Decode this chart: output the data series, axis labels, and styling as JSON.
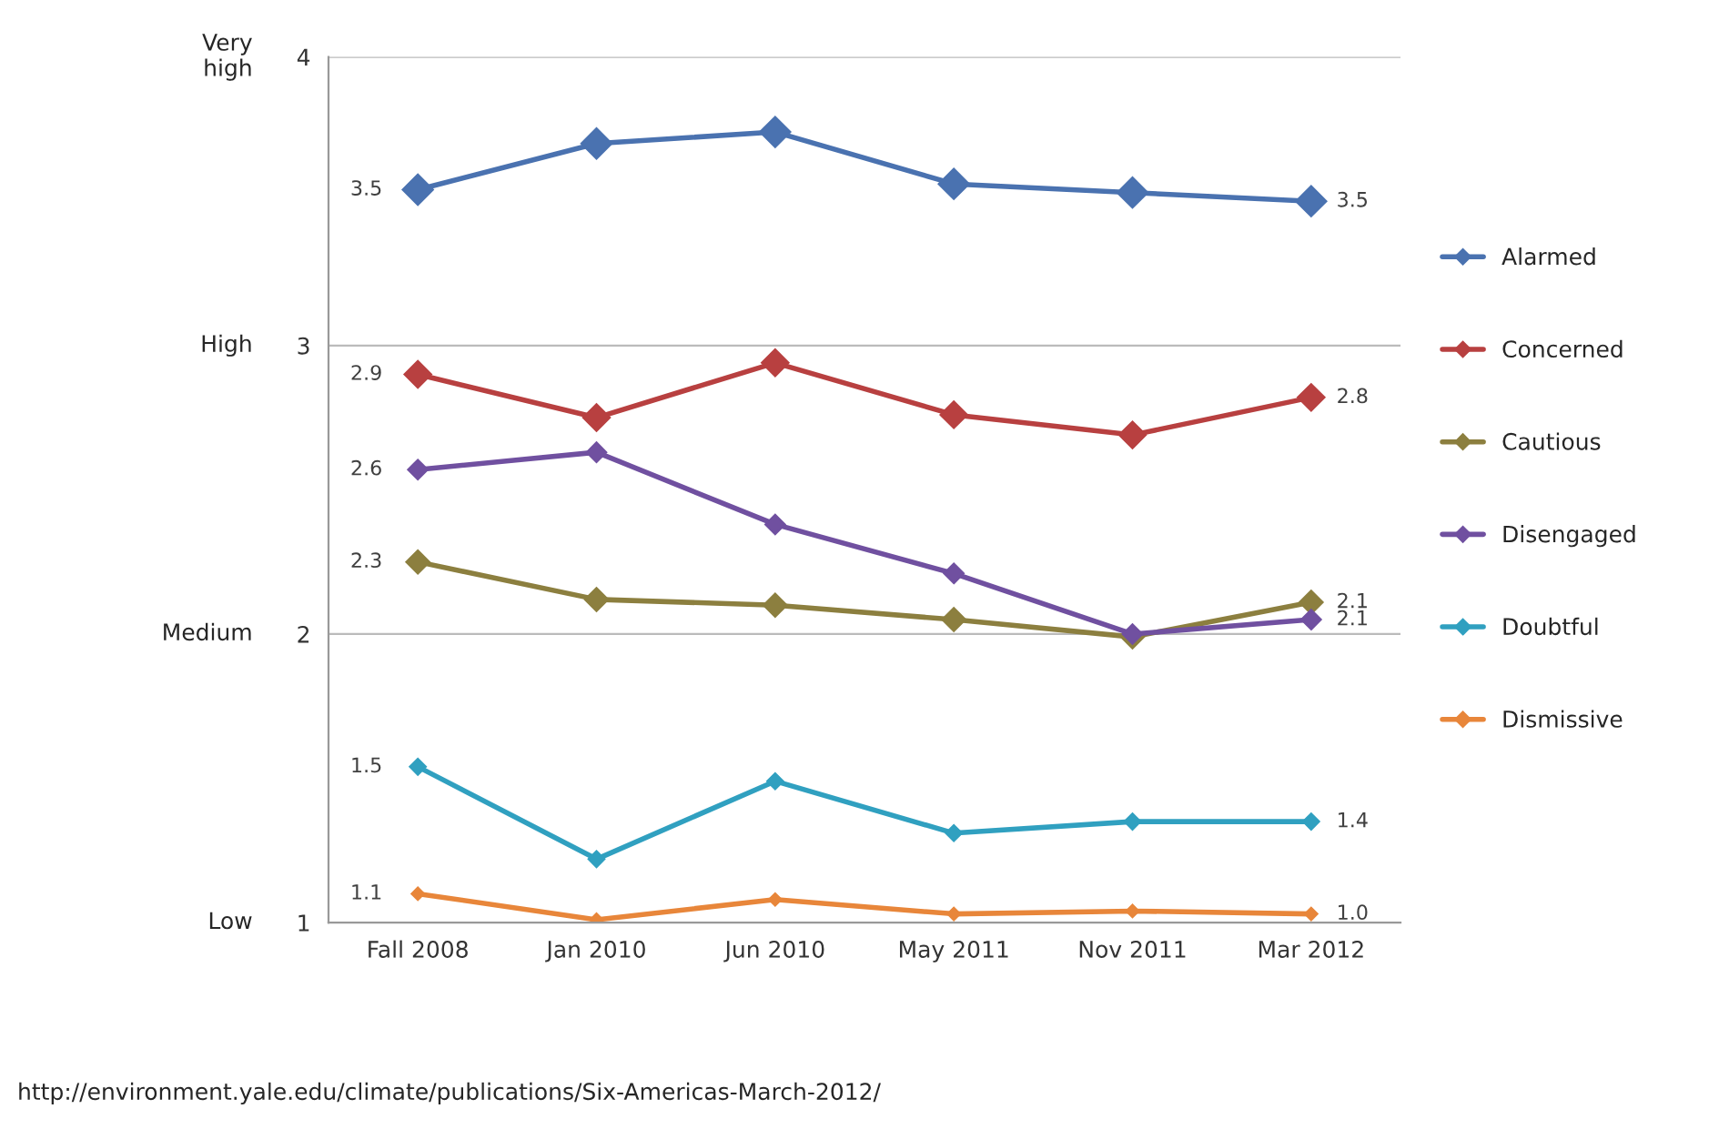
{
  "chart_data": {
    "type": "line",
    "categories": [
      "Fall 2008",
      "Jan 2010",
      "Jun 2010",
      "May 2011",
      "Nov 2011",
      "Mar 2012"
    ],
    "series": [
      {
        "name": "Alarmed",
        "color": "#4a72b0",
        "values": [
          3.54,
          3.7,
          3.74,
          3.56,
          3.53,
          3.5
        ],
        "value_labels": [
          "3.5",
          null,
          null,
          null,
          null,
          "3.5"
        ]
      },
      {
        "name": "Concerned",
        "color": "#b84040",
        "values": [
          2.9,
          2.75,
          2.94,
          2.76,
          2.69,
          2.82
        ],
        "value_labels": [
          "2.9",
          null,
          null,
          null,
          null,
          "2.8"
        ]
      },
      {
        "name": "Cautious",
        "color": "#8c7f3f",
        "values": [
          2.25,
          2.12,
          2.1,
          2.05,
          1.99,
          2.11
        ],
        "value_labels": [
          "2.3",
          null,
          null,
          null,
          null,
          "2.1"
        ]
      },
      {
        "name": "Disengaged",
        "color": "#7050a0",
        "values": [
          2.57,
          2.63,
          2.38,
          2.21,
          2.0,
          2.05
        ],
        "value_labels": [
          "2.6",
          null,
          null,
          null,
          null,
          "2.1"
        ]
      },
      {
        "name": "Doubtful",
        "color": "#30a0c0",
        "values": [
          1.54,
          1.22,
          1.49,
          1.31,
          1.35,
          1.35
        ],
        "value_labels": [
          "1.5",
          null,
          null,
          null,
          null,
          "1.4"
        ]
      },
      {
        "name": "Dismissive",
        "color": "#e8863a",
        "values": [
          1.1,
          1.01,
          1.08,
          1.03,
          1.04,
          1.03
        ],
        "value_labels": [
          "1.1",
          null,
          null,
          null,
          null,
          "1.0"
        ]
      }
    ],
    "ylim": [
      1,
      4
    ],
    "yticks": [
      1,
      2,
      3,
      4
    ],
    "grid": "y",
    "legend": "right",
    "marker": "diamond",
    "line_style": "solid",
    "annotations": [
      "Very\nhigh",
      "High",
      "Medium",
      "Low",
      "http://environment.yale.edu/climate/publications/Six-Americas-March-2012/"
    ]
  }
}
